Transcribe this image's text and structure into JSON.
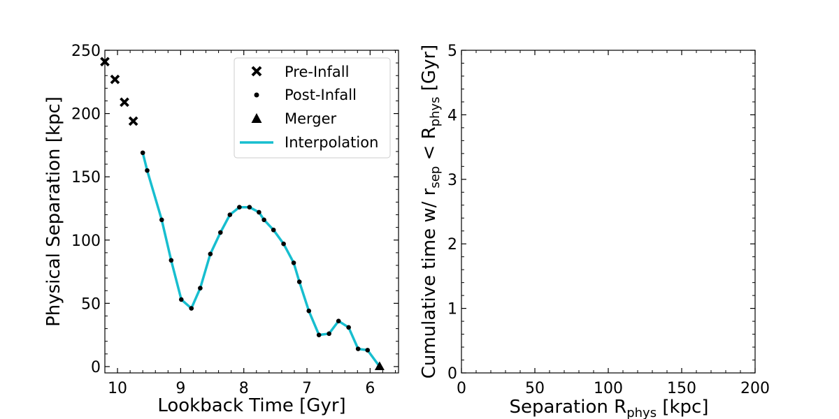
{
  "chart_data": [
    {
      "type": "line",
      "xlabel": "Lookback Time [Gyr]",
      "ylabel": "Physical Separation [kpc]",
      "xlim": [
        10.2,
        5.55
      ],
      "ylim": [
        -5,
        250
      ],
      "x_inverted": true,
      "xticks": [
        10,
        9,
        8,
        7,
        6
      ],
      "yticks": [
        0,
        50,
        100,
        150,
        200,
        250
      ],
      "grid": false,
      "legend_position": "top-right",
      "legend": [
        {
          "label": "Pre-Infall",
          "marker": "x"
        },
        {
          "label": "Post-Infall",
          "marker": "dot"
        },
        {
          "label": "Merger",
          "marker": "triangle"
        },
        {
          "label": "Interpolation",
          "marker": "line"
        }
      ],
      "colors": {
        "interpolation": "#17becf",
        "markers": "#000000"
      },
      "series": [
        {
          "name": "Pre-Infall",
          "marker": "x",
          "points": [
            [
              10.2,
              241
            ],
            [
              10.04,
              227
            ],
            [
              9.89,
              209
            ],
            [
              9.75,
              194
            ]
          ]
        },
        {
          "name": "Post-Infall",
          "marker": "dot",
          "points": [
            [
              9.6,
              169
            ],
            [
              9.53,
              155
            ],
            [
              9.3,
              116
            ],
            [
              9.15,
              84
            ],
            [
              8.99,
              53
            ],
            [
              8.83,
              46
            ],
            [
              8.69,
              62
            ],
            [
              8.53,
              89
            ],
            [
              8.37,
              106
            ],
            [
              8.22,
              120
            ],
            [
              8.07,
              126
            ],
            [
              7.91,
              126
            ],
            [
              7.76,
              122
            ],
            [
              7.68,
              116
            ],
            [
              7.53,
              108
            ],
            [
              7.37,
              97
            ],
            [
              7.21,
              82
            ],
            [
              7.12,
              67
            ],
            [
              6.97,
              44
            ],
            [
              6.81,
              25
            ],
            [
              6.65,
              26
            ],
            [
              6.5,
              36
            ],
            [
              6.34,
              31
            ],
            [
              6.19,
              14
            ],
            [
              6.04,
              13
            ]
          ]
        },
        {
          "name": "Merger",
          "marker": "triangle",
          "points": [
            [
              5.85,
              0
            ]
          ]
        },
        {
          "name": "Interpolation",
          "marker": "line",
          "points": [
            [
              9.6,
              169
            ],
            [
              9.53,
              155
            ],
            [
              9.3,
              116
            ],
            [
              9.15,
              84
            ],
            [
              8.99,
              53
            ],
            [
              8.83,
              46
            ],
            [
              8.69,
              62
            ],
            [
              8.53,
              89
            ],
            [
              8.37,
              106
            ],
            [
              8.22,
              120
            ],
            [
              8.07,
              126
            ],
            [
              7.91,
              126
            ],
            [
              7.76,
              122
            ],
            [
              7.68,
              116
            ],
            [
              7.53,
              108
            ],
            [
              7.37,
              97
            ],
            [
              7.21,
              82
            ],
            [
              7.12,
              67
            ],
            [
              6.97,
              44
            ],
            [
              6.81,
              25
            ],
            [
              6.65,
              26
            ],
            [
              6.5,
              36
            ],
            [
              6.34,
              31
            ],
            [
              6.19,
              14
            ],
            [
              6.04,
              13
            ],
            [
              5.85,
              0
            ]
          ]
        }
      ]
    },
    {
      "type": "line",
      "xlabel_main": "Separation R",
      "xlabel_sub": "phys",
      "xlabel_tail": " [kpc]",
      "ylabel_a": "Cumulative time w/ r",
      "ylabel_sub1": "sep",
      "ylabel_b": " < R",
      "ylabel_sub2": "phys",
      "ylabel_tail": " [Gyr]",
      "xlim": [
        0,
        200
      ],
      "ylim": [
        0,
        5
      ],
      "xticks": [
        0,
        50,
        100,
        150,
        200
      ],
      "yticks": [
        0,
        1,
        2,
        3,
        4,
        5
      ],
      "grid": false,
      "series": []
    }
  ]
}
